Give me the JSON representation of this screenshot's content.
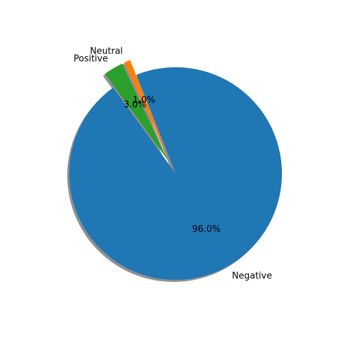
{
  "chart_data": {
    "type": "pie",
    "categories": [
      "Negative",
      "Neutral",
      "Positive"
    ],
    "values": [
      96.0,
      1.0,
      3.0
    ],
    "percent_labels": [
      "96.0%",
      "1.0%",
      "3.0%"
    ],
    "colors": [
      "#1f77b4",
      "#ff7f0e",
      "#2ca02c"
    ],
    "exploded": [
      false,
      true,
      true
    ],
    "shadow": true,
    "title": ""
  }
}
